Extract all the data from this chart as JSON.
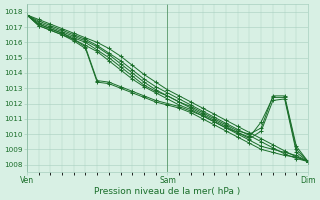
{
  "title": "",
  "xlabel": "Pression niveau de la mer( hPa )",
  "ylabel": "",
  "xlim": [
    0,
    48
  ],
  "ylim": [
    1007.5,
    1018.5
  ],
  "yticks": [
    1008,
    1009,
    1010,
    1011,
    1012,
    1013,
    1014,
    1015,
    1016,
    1017,
    1018
  ],
  "xtick_positions": [
    0,
    24,
    48
  ],
  "xtick_labels": [
    "Ven",
    "Sam",
    "Dim"
  ],
  "bg_color": "#d8f0e4",
  "grid_color": "#a8cfc0",
  "line_color": "#1a6e2a",
  "series": [
    [
      0,
      1017.8,
      2,
      1017.5,
      4,
      1017.2,
      6,
      1016.9,
      8,
      1016.6,
      10,
      1016.3,
      12,
      1016.0,
      14,
      1015.6,
      16,
      1015.1,
      18,
      1014.5,
      20,
      1013.9,
      22,
      1013.4,
      24,
      1012.9,
      26,
      1012.5,
      28,
      1012.1,
      30,
      1011.7,
      32,
      1011.3,
      34,
      1010.9,
      36,
      1010.5,
      38,
      1010.1,
      40,
      1009.7,
      42,
      1009.3,
      44,
      1008.9,
      46,
      1008.5,
      48,
      1008.2
    ],
    [
      0,
      1017.8,
      2,
      1017.4,
      4,
      1017.1,
      6,
      1016.8,
      8,
      1016.5,
      10,
      1016.2,
      12,
      1015.8,
      14,
      1015.3,
      16,
      1014.8,
      18,
      1014.2,
      20,
      1013.6,
      22,
      1013.1,
      24,
      1012.7,
      26,
      1012.3,
      28,
      1011.9,
      30,
      1011.5,
      32,
      1011.1,
      34,
      1010.7,
      36,
      1010.3,
      38,
      1009.9,
      40,
      1009.5,
      42,
      1009.1,
      44,
      1008.7,
      46,
      1008.4,
      48,
      1008.2
    ],
    [
      0,
      1017.8,
      2,
      1017.3,
      4,
      1017.0,
      6,
      1016.7,
      8,
      1016.4,
      10,
      1016.1,
      12,
      1015.7,
      14,
      1015.2,
      16,
      1014.6,
      18,
      1014.0,
      20,
      1013.4,
      22,
      1012.9,
      24,
      1012.5,
      26,
      1012.1,
      28,
      1011.8,
      30,
      1011.4,
      32,
      1011.0,
      34,
      1010.6,
      36,
      1010.2,
      38,
      1010.0,
      40,
      1010.4,
      42,
      1012.5,
      44,
      1012.5,
      46,
      1009.2,
      48,
      1008.2
    ],
    [
      0,
      1017.8,
      2,
      1017.2,
      4,
      1016.9,
      6,
      1016.6,
      8,
      1016.3,
      10,
      1016.0,
      12,
      1015.5,
      14,
      1015.0,
      16,
      1014.4,
      18,
      1013.8,
      20,
      1013.2,
      22,
      1012.8,
      24,
      1012.5,
      26,
      1012.1,
      28,
      1011.7,
      30,
      1011.3,
      32,
      1010.9,
      34,
      1010.5,
      36,
      1010.1,
      38,
      1009.8,
      40,
      1010.8,
      42,
      1012.4,
      44,
      1012.4,
      46,
      1009.0,
      48,
      1008.2
    ],
    [
      0,
      1017.8,
      2,
      1017.1,
      4,
      1016.8,
      6,
      1016.5,
      8,
      1016.2,
      10,
      1015.8,
      12,
      1015.4,
      14,
      1014.8,
      16,
      1014.2,
      18,
      1013.6,
      20,
      1013.1,
      22,
      1012.7,
      24,
      1012.3,
      26,
      1011.9,
      28,
      1011.6,
      30,
      1011.2,
      32,
      1010.8,
      34,
      1010.4,
      36,
      1010.1,
      38,
      1009.7,
      40,
      1010.2,
      42,
      1012.2,
      44,
      1012.3,
      46,
      1008.8,
      48,
      1008.2
    ],
    [
      0,
      1017.8,
      2,
      1017.2,
      4,
      1016.9,
      6,
      1016.6,
      8,
      1016.2,
      10,
      1015.7,
      12,
      1013.5,
      14,
      1013.4,
      16,
      1013.1,
      18,
      1012.8,
      20,
      1012.5,
      22,
      1012.2,
      24,
      1012.0,
      26,
      1011.8,
      28,
      1011.5,
      30,
      1011.2,
      32,
      1010.8,
      34,
      1010.4,
      36,
      1010.0,
      38,
      1009.6,
      40,
      1009.2,
      42,
      1009.0,
      44,
      1008.8,
      46,
      1008.6,
      48,
      1008.2
    ],
    [
      0,
      1017.8,
      2,
      1017.1,
      4,
      1016.8,
      6,
      1016.5,
      8,
      1016.1,
      10,
      1015.6,
      12,
      1013.4,
      14,
      1013.3,
      16,
      1013.0,
      18,
      1012.7,
      20,
      1012.4,
      22,
      1012.1,
      24,
      1011.9,
      26,
      1011.7,
      28,
      1011.4,
      30,
      1011.0,
      32,
      1010.6,
      34,
      1010.2,
      36,
      1009.8,
      38,
      1009.4,
      40,
      1009.0,
      42,
      1008.8,
      44,
      1008.6,
      46,
      1008.5,
      48,
      1008.2
    ]
  ]
}
